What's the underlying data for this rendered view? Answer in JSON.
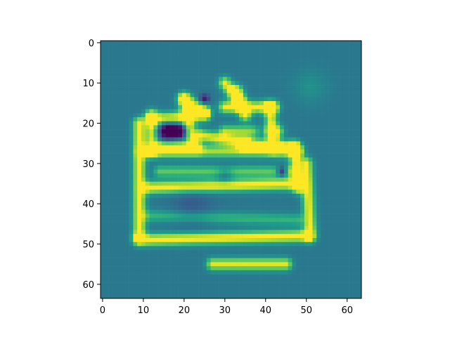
{
  "chart_data": {
    "type": "heatmap",
    "title": "",
    "xlabel": "",
    "ylabel": "",
    "xlim": [
      -0.5,
      63.5
    ],
    "ylim": [
      63.5,
      -0.5
    ],
    "x_ticks": [
      0,
      10,
      20,
      30,
      40,
      50,
      60
    ],
    "y_ticks": [
      0,
      10,
      20,
      30,
      40,
      50,
      60
    ],
    "x_tick_labels": [
      "0",
      "10",
      "20",
      "30",
      "40",
      "50",
      "60"
    ],
    "y_tick_labels": [
      "0",
      "10",
      "20",
      "30",
      "40",
      "50",
      "60"
    ],
    "grid": false,
    "colormap": "viridis",
    "background_value": 0.4,
    "grid_size": [
      64,
      64
    ],
    "notes_on_content": "64x64 intensity image; bright (yellow) strokes outline a crown-like shape on a mid-teal background",
    "colorscale": [
      "#440154",
      "#482878",
      "#3e4989",
      "#31688e",
      "#26828e",
      "#1f9e89",
      "#35b779",
      "#6ece58",
      "#b5de2b",
      "#fde725"
    ]
  }
}
